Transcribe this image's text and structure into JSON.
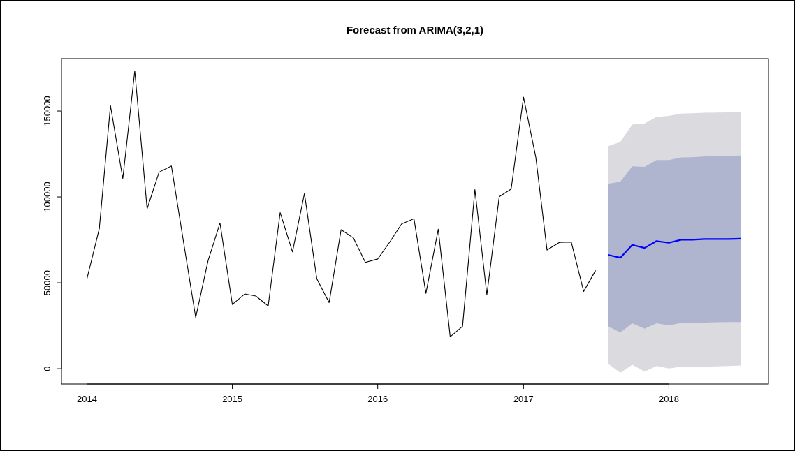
{
  "chart_data": {
    "type": "line",
    "title": "Forecast from ARIMA(3,2,1)",
    "xlim": [
      "2013-10-29",
      "2018-09-08"
    ],
    "xticks": [
      {
        "value": "2014-01-01",
        "label": "2014"
      },
      {
        "value": "2015-01-01",
        "label": "2015"
      },
      {
        "value": "2016-01-01",
        "label": "2016"
      },
      {
        "value": "2017-01-01",
        "label": "2017"
      },
      {
        "value": "2018-01-01",
        "label": "2018"
      }
    ],
    "ylim": [
      -8900,
      180500
    ],
    "yticks": [
      0,
      50000,
      100000,
      150000
    ],
    "grid": false,
    "series": [
      {
        "color": "#000000",
        "x": [
          "2014-01",
          "2014-02",
          "2014-03",
          "2014-04",
          "2014-05",
          "2014-06",
          "2014-07",
          "2014-08",
          "2014-09",
          "2014-10",
          "2014-11",
          "2014-12",
          "2015-01",
          "2015-02",
          "2015-03",
          "2015-04",
          "2015-05",
          "2015-06",
          "2015-07",
          "2015-08",
          "2015-09",
          "2015-10",
          "2015-11",
          "2015-12",
          "2016-01",
          "2016-02",
          "2016-03",
          "2016-04",
          "2016-05",
          "2016-06",
          "2016-07",
          "2016-08",
          "2016-09",
          "2016-10",
          "2016-11",
          "2016-12",
          "2017-01",
          "2017-02",
          "2017-03",
          "2017-04",
          "2017-05",
          "2017-06",
          "2017-07"
        ],
        "values": [
          52400,
          81600,
          153100,
          110700,
          173400,
          93100,
          114400,
          118000,
          73000,
          29800,
          62900,
          84800,
          37400,
          43500,
          42300,
          36500,
          90900,
          68000,
          102000,
          52400,
          38500,
          80900,
          76100,
          61900,
          63900,
          74000,
          84300,
          87300,
          43900,
          81200,
          18600,
          24700,
          104300,
          43000,
          100100,
          104600,
          158100,
          122900,
          69100,
          73500,
          73700,
          45000,
          57200
        ]
      },
      {
        "type": "area",
        "color": "#dbdbdf",
        "x": [
          "2017-08",
          "2017-09",
          "2017-10",
          "2017-11",
          "2017-12",
          "2018-01",
          "2018-02",
          "2018-03",
          "2018-04",
          "2018-05",
          "2018-06",
          "2018-07"
        ],
        "values": [
          null,
          null,
          null,
          null,
          null,
          null,
          null,
          null,
          null,
          null,
          null,
          null
        ],
        "lower": [
          3000,
          -2400,
          2300,
          -1700,
          1600,
          100,
          1200,
          1000,
          1200,
          1400,
          1600,
          1900
        ],
        "upper": [
          129500,
          132000,
          142100,
          142800,
          146600,
          147200,
          148500,
          148700,
          149000,
          149100,
          149200,
          149600
        ]
      },
      {
        "type": "area",
        "color": "#b0b5cf",
        "x": [
          "2017-08",
          "2017-09",
          "2017-10",
          "2017-11",
          "2017-12",
          "2018-01",
          "2018-02",
          "2018-03",
          "2018-04",
          "2018-05",
          "2018-06",
          "2018-07"
        ],
        "values": [
          null,
          null,
          null,
          null,
          null,
          null,
          null,
          null,
          null,
          null,
          null,
          null
        ],
        "lower": [
          24700,
          21100,
          26500,
          23300,
          26500,
          25200,
          26700,
          26800,
          26900,
          27100,
          27200,
          27200
        ],
        "upper": [
          107600,
          108900,
          117800,
          117500,
          121500,
          121500,
          123000,
          123100,
          123600,
          123800,
          123900,
          124100
        ]
      },
      {
        "color": "#0000ff",
        "x": [
          "2017-08",
          "2017-09",
          "2017-10",
          "2017-11",
          "2017-12",
          "2018-01",
          "2018-02",
          "2018-03",
          "2018-04",
          "2018-05",
          "2018-06",
          "2018-07"
        ],
        "values": [
          66300,
          64600,
          72100,
          70300,
          74300,
          73300,
          75100,
          75100,
          75500,
          75500,
          75500,
          75700
        ]
      }
    ]
  }
}
